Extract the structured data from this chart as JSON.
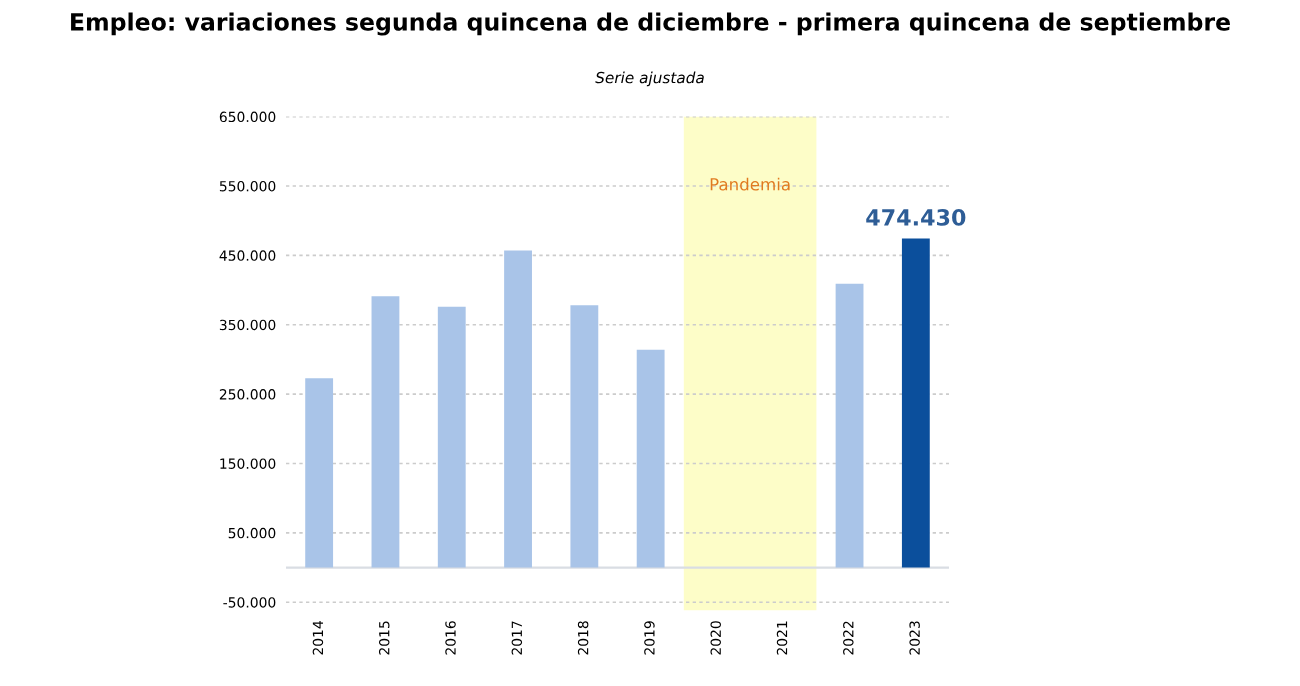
{
  "chart_data": {
    "type": "bar",
    "title": "Empleo: variaciones segunda quincena de diciembre - primera quincena de septiembre",
    "subtitle": "Serie ajustada",
    "categories": [
      "2014",
      "2015",
      "2016",
      "2017",
      "2018",
      "2019",
      "2020",
      "2021",
      "2022",
      "2023"
    ],
    "values": [
      273000,
      391000,
      376000,
      457000,
      378000,
      314000,
      null,
      null,
      409000,
      474430
    ],
    "colors": [
      "#a9c4e8",
      "#a9c4e8",
      "#a9c4e8",
      "#a9c4e8",
      "#a9c4e8",
      "#a9c4e8",
      "#a9c4e8",
      "#a9c4e8",
      "#a9c4e8",
      "#0b4f9c"
    ],
    "value_labels": [
      null,
      null,
      null,
      null,
      null,
      null,
      null,
      null,
      null,
      "474.430"
    ],
    "ylim": [
      -62000,
      650000
    ],
    "yticks": [
      {
        "value": -50000,
        "label": "-50.000"
      },
      {
        "value": 50000,
        "label": "50.000"
      },
      {
        "value": 150000,
        "label": "150.000"
      },
      {
        "value": 250000,
        "label": "250.000"
      },
      {
        "value": 350000,
        "label": "350.000"
      },
      {
        "value": 450000,
        "label": "450.000"
      },
      {
        "value": 550000,
        "label": "550.000"
      },
      {
        "value": 650000,
        "label": "650.000"
      }
    ],
    "bands": [
      {
        "axis": "x",
        "from": "2020",
        "to": "2021",
        "label": "Pandemia",
        "color": "#fdfdc8"
      }
    ],
    "grid": "y"
  }
}
